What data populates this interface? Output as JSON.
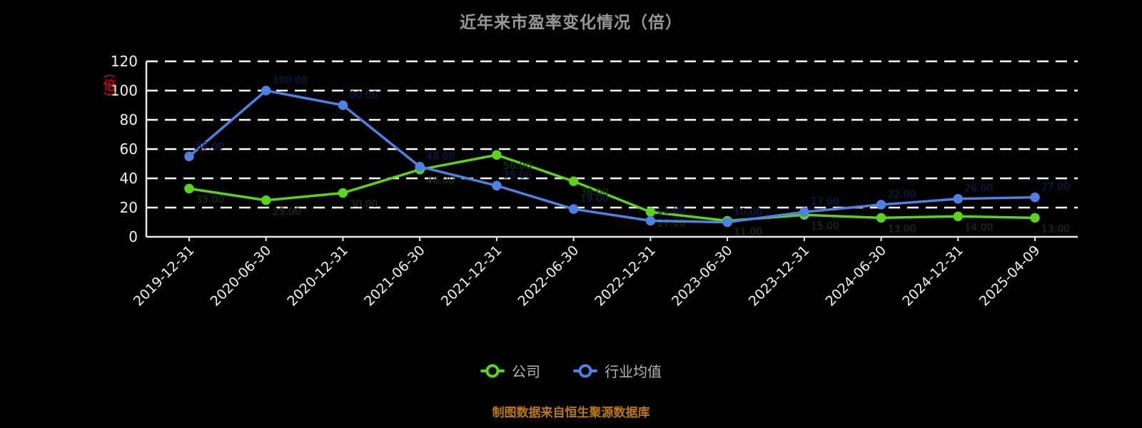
{
  "title": "近年来市盈率变化情况（倍）",
  "y_axis_unit": "（倍）",
  "footer": "制图数据来自恒生聚源数据库",
  "chart_data": {
    "type": "line",
    "x": [
      "2019-12-31",
      "2020-06-30",
      "2020-12-31",
      "2021-06-30",
      "2021-12-31",
      "2022-06-30",
      "2022-12-31",
      "2023-06-30",
      "2023-12-31",
      "2024-06-30",
      "2024-12-31",
      "2025-04-09"
    ],
    "series": [
      {
        "name": "公司",
        "color": "#5ad21e",
        "label_color": "#173c09",
        "values": [
          33,
          25,
          30,
          46,
          56,
          38,
          17,
          11,
          15,
          13,
          14,
          13
        ]
      },
      {
        "name": "行业均值",
        "color": "#4f81e5",
        "label_color": "#0c2254",
        "values": [
          55,
          100,
          90,
          48,
          35,
          19,
          11,
          10,
          17,
          22,
          26,
          27
        ]
      }
    ],
    "ylim": [
      0,
      120
    ],
    "y_ticks": [
      0,
      20,
      40,
      60,
      80,
      100,
      120
    ],
    "grid": true,
    "legend_position": "bottom",
    "axis_color": "#e8e8e8",
    "tick_label_color": "#f2f2f2",
    "unit_label_color": "#ff0000"
  }
}
